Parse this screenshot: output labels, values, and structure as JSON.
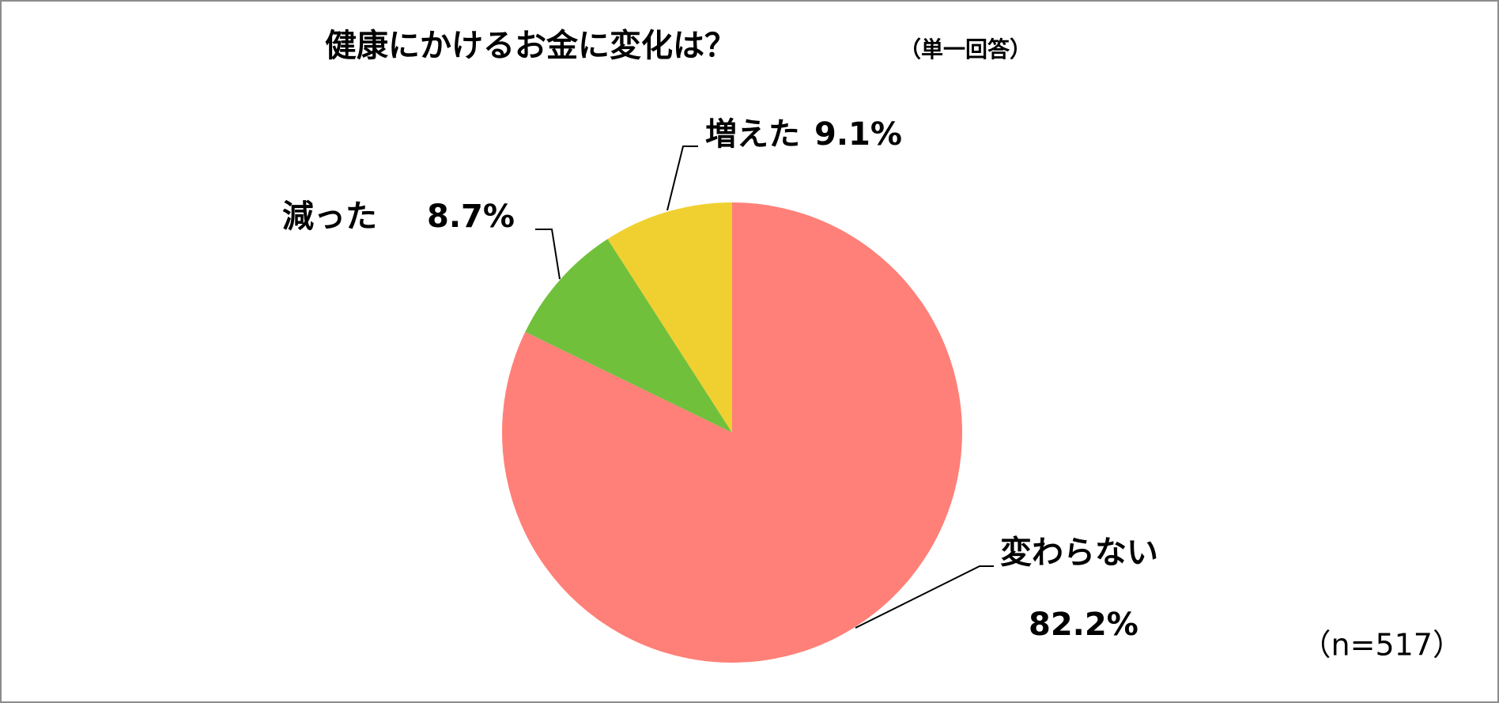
{
  "chart_data": {
    "type": "pie",
    "title": "健康にかけるお金に変化は？",
    "subtitle": "（単一回答）",
    "categories": [
      "変わらない",
      "減った",
      "増えた"
    ],
    "values": [
      82.2,
      8.7,
      9.1
    ],
    "value_labels": [
      "82.2%",
      "8.7%",
      "9.1%"
    ],
    "colors": [
      "#ff8078",
      "#70c03c",
      "#f0d030"
    ],
    "note": "（n=517）"
  }
}
